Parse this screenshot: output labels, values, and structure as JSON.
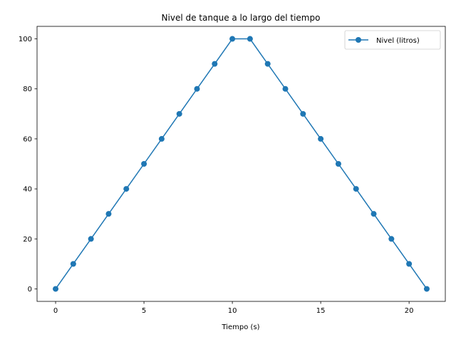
{
  "chart_data": {
    "type": "line",
    "title": "Nivel de tanque a lo largo del tiempo",
    "xlabel": "Tiempo (s)",
    "ylabel": "",
    "xlim": [
      -1.05,
      22.05
    ],
    "ylim": [
      -5,
      105
    ],
    "xticks": [
      0,
      5,
      10,
      15,
      20
    ],
    "yticks": [
      0,
      20,
      40,
      60,
      80,
      100
    ],
    "grid": false,
    "legend_position": "top-right",
    "series": [
      {
        "name": "Nivel (litros)",
        "color": "#1f77b4",
        "marker": "circle",
        "x": [
          0,
          1,
          2,
          3,
          4,
          5,
          6,
          7,
          8,
          9,
          10,
          11,
          12,
          13,
          14,
          15,
          16,
          17,
          18,
          19,
          20,
          21
        ],
        "y": [
          0,
          10,
          20,
          30,
          40,
          50,
          60,
          70,
          80,
          90,
          100,
          100,
          90,
          80,
          70,
          60,
          50,
          40,
          30,
          20,
          10,
          0
        ]
      }
    ]
  }
}
